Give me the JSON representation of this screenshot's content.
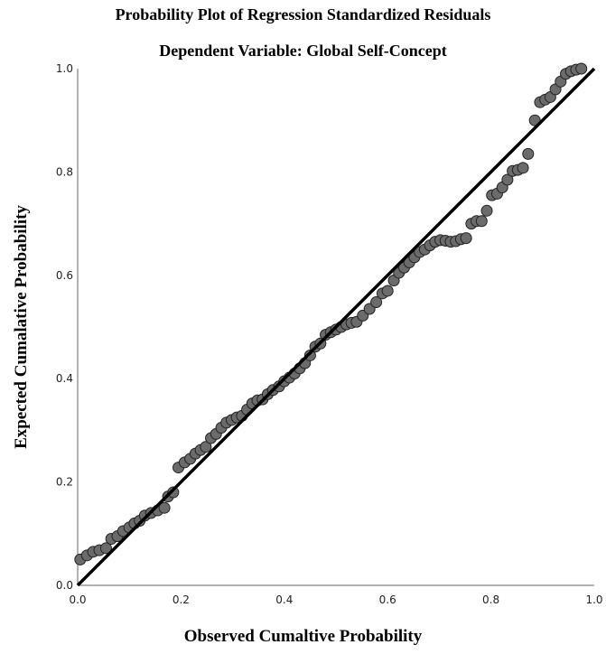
{
  "chart_data": {
    "type": "scatter",
    "title": "Probability Plot of Regression Standardized Residuals",
    "subtitle": "Dependent Variable: Global Self-Concept",
    "xlabel": "Observed Cumaltive Probability",
    "ylabel": "Expected Cumalative Probability",
    "xlim": [
      0.0,
      1.0
    ],
    "ylim": [
      0.0,
      1.0
    ],
    "xticks": [
      "0.0",
      "0.2",
      "0.4",
      "0.6",
      "0.8",
      "1.0"
    ],
    "yticks": [
      "0.0",
      "0.2",
      "0.4",
      "0.6",
      "0.8",
      "1.0"
    ],
    "grid": false,
    "reference_line": {
      "x": [
        0.0,
        1.0
      ],
      "y": [
        0.0,
        1.0
      ]
    },
    "marker_color": "#6b6b6b",
    "points": [
      [
        0.005,
        0.05
      ],
      [
        0.018,
        0.058
      ],
      [
        0.03,
        0.065
      ],
      [
        0.042,
        0.068
      ],
      [
        0.055,
        0.072
      ],
      [
        0.065,
        0.09
      ],
      [
        0.077,
        0.095
      ],
      [
        0.088,
        0.105
      ],
      [
        0.1,
        0.112
      ],
      [
        0.11,
        0.12
      ],
      [
        0.12,
        0.125
      ],
      [
        0.13,
        0.135
      ],
      [
        0.142,
        0.14
      ],
      [
        0.155,
        0.145
      ],
      [
        0.168,
        0.15
      ],
      [
        0.175,
        0.172
      ],
      [
        0.185,
        0.18
      ],
      [
        0.195,
        0.228
      ],
      [
        0.207,
        0.238
      ],
      [
        0.218,
        0.245
      ],
      [
        0.228,
        0.255
      ],
      [
        0.238,
        0.262
      ],
      [
        0.248,
        0.268
      ],
      [
        0.258,
        0.285
      ],
      [
        0.268,
        0.293
      ],
      [
        0.278,
        0.305
      ],
      [
        0.288,
        0.315
      ],
      [
        0.298,
        0.32
      ],
      [
        0.308,
        0.325
      ],
      [
        0.318,
        0.328
      ],
      [
        0.328,
        0.34
      ],
      [
        0.338,
        0.352
      ],
      [
        0.348,
        0.358
      ],
      [
        0.358,
        0.36
      ],
      [
        0.368,
        0.37
      ],
      [
        0.378,
        0.378
      ],
      [
        0.39,
        0.385
      ],
      [
        0.4,
        0.395
      ],
      [
        0.41,
        0.402
      ],
      [
        0.42,
        0.41
      ],
      [
        0.43,
        0.42
      ],
      [
        0.44,
        0.43
      ],
      [
        0.45,
        0.445
      ],
      [
        0.46,
        0.462
      ],
      [
        0.47,
        0.468
      ],
      [
        0.48,
        0.485
      ],
      [
        0.49,
        0.49
      ],
      [
        0.5,
        0.495
      ],
      [
        0.51,
        0.5
      ],
      [
        0.52,
        0.505
      ],
      [
        0.53,
        0.508
      ],
      [
        0.54,
        0.51
      ],
      [
        0.552,
        0.522
      ],
      [
        0.565,
        0.535
      ],
      [
        0.578,
        0.548
      ],
      [
        0.59,
        0.565
      ],
      [
        0.6,
        0.57
      ],
      [
        0.612,
        0.59
      ],
      [
        0.622,
        0.605
      ],
      [
        0.632,
        0.615
      ],
      [
        0.642,
        0.625
      ],
      [
        0.652,
        0.635
      ],
      [
        0.662,
        0.645
      ],
      [
        0.672,
        0.65
      ],
      [
        0.682,
        0.658
      ],
      [
        0.692,
        0.665
      ],
      [
        0.702,
        0.668
      ],
      [
        0.712,
        0.667
      ],
      [
        0.722,
        0.665
      ],
      [
        0.732,
        0.666
      ],
      [
        0.742,
        0.67
      ],
      [
        0.752,
        0.672
      ],
      [
        0.762,
        0.7
      ],
      [
        0.772,
        0.705
      ],
      [
        0.782,
        0.705
      ],
      [
        0.792,
        0.725
      ],
      [
        0.802,
        0.755
      ],
      [
        0.812,
        0.758
      ],
      [
        0.822,
        0.77
      ],
      [
        0.832,
        0.785
      ],
      [
        0.842,
        0.802
      ],
      [
        0.852,
        0.804
      ],
      [
        0.862,
        0.808
      ],
      [
        0.872,
        0.835
      ],
      [
        0.885,
        0.9
      ],
      [
        0.895,
        0.935
      ],
      [
        0.905,
        0.94
      ],
      [
        0.915,
        0.945
      ],
      [
        0.925,
        0.96
      ],
      [
        0.935,
        0.975
      ],
      [
        0.945,
        0.99
      ],
      [
        0.955,
        0.995
      ],
      [
        0.965,
        0.998
      ],
      [
        0.975,
        1.0
      ]
    ]
  }
}
